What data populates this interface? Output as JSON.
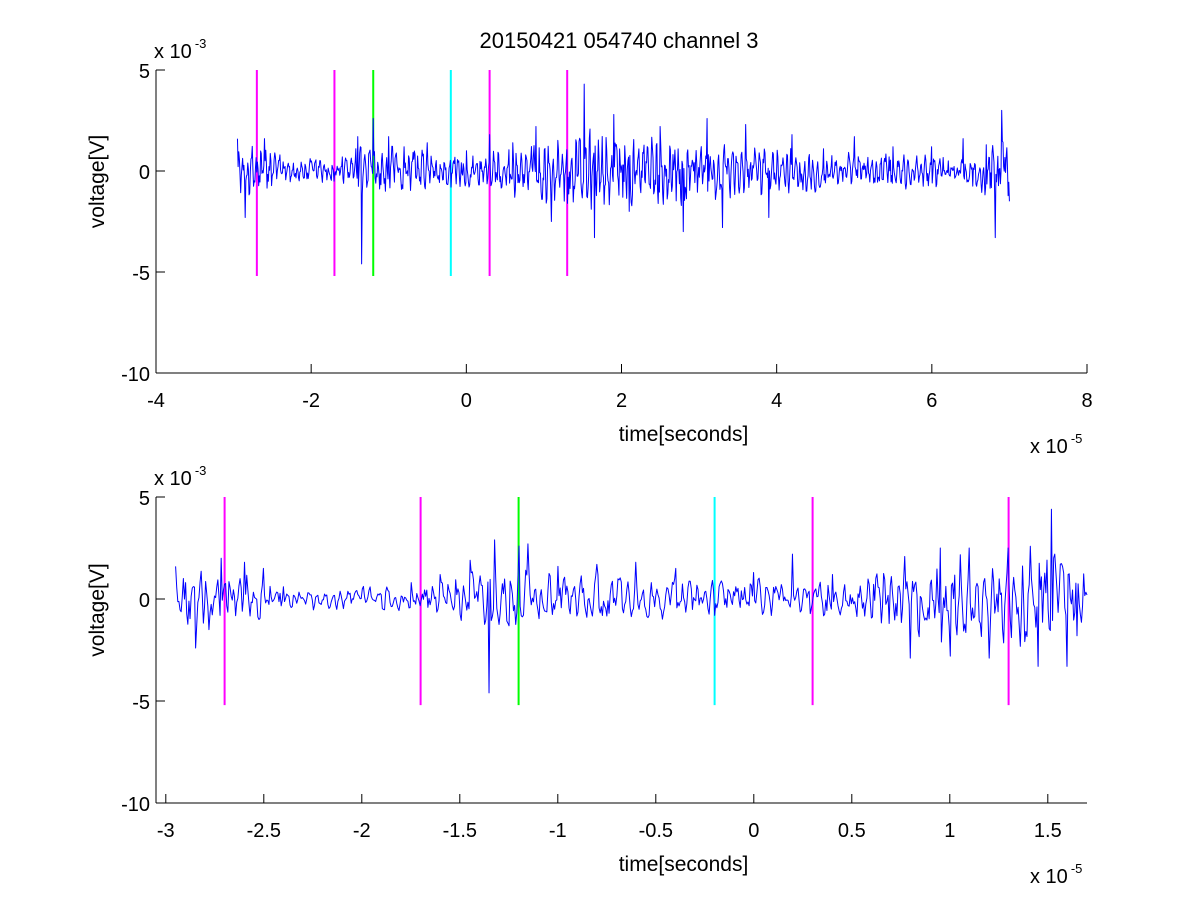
{
  "figure_title": "20150421 054740 channel 3",
  "chart_data": [
    {
      "type": "line",
      "xlabel": "time[seconds]",
      "ylabel": "voltage[V]",
      "x_exponent_label": "x 10",
      "x_exponent": "-5",
      "y_exponent_label": "x 10",
      "y_exponent": "-3",
      "xlim": [
        -4,
        8
      ],
      "ylim": [
        -10,
        5
      ],
      "xticks": [
        -4,
        -2,
        0,
        2,
        4,
        6,
        8
      ],
      "xtick_labels": [
        "-4",
        "-2",
        "0",
        "2",
        "4",
        "6",
        "8"
      ],
      "yticks": [
        -10,
        -5,
        0,
        5
      ],
      "ytick_labels": [
        "-10",
        "-5",
        "0",
        "5"
      ],
      "grid": false,
      "series": [
        {
          "color": "#0000ff",
          "x_start": -2.95,
          "x_end": 7.0,
          "envelope": [
            [
              -2.95,
              1.6
            ],
            [
              -2.85,
              -2.3
            ],
            [
              -2.6,
              1.6
            ],
            [
              -2.4,
              0.8
            ],
            [
              -2.0,
              0.5
            ],
            [
              -1.6,
              0.7
            ],
            [
              -1.4,
              1.7
            ],
            [
              -1.35,
              -4.6
            ],
            [
              -1.2,
              2.6
            ],
            [
              -1.0,
              1.7
            ],
            [
              -0.8,
              1.2
            ],
            [
              -0.5,
              1.4
            ],
            [
              -0.2,
              -0.8
            ],
            [
              0.0,
              1.0
            ],
            [
              0.3,
              1.8
            ],
            [
              0.6,
              1.4
            ],
            [
              0.9,
              2.2
            ],
            [
              1.1,
              -2.5
            ],
            [
              1.3,
              -1.6
            ],
            [
              1.52,
              4.3
            ],
            [
              1.65,
              -3.3
            ],
            [
              1.9,
              2.8
            ],
            [
              2.1,
              -2.0
            ],
            [
              2.5,
              2.2
            ],
            [
              2.8,
              -3.0
            ],
            [
              3.1,
              2.6
            ],
            [
              3.3,
              -2.8
            ],
            [
              3.6,
              2.3
            ],
            [
              3.9,
              -2.3
            ],
            [
              4.2,
              1.8
            ],
            [
              4.6,
              1.1
            ],
            [
              5.0,
              1.7
            ],
            [
              5.5,
              1.2
            ],
            [
              6.0,
              1.2
            ],
            [
              6.4,
              1.6
            ],
            [
              6.7,
              1.3
            ],
            [
              6.82,
              -3.3
            ],
            [
              6.9,
              3.0
            ],
            [
              7.0,
              -1.5
            ]
          ],
          "amplitude_profile": [
            [
              -2.95,
              1.2
            ],
            [
              -2.6,
              1.4
            ],
            [
              -2.4,
              0.6
            ],
            [
              -1.6,
              0.7
            ],
            [
              -1.2,
              1.4
            ],
            [
              -0.6,
              1.0
            ],
            [
              0.0,
              0.9
            ],
            [
              0.5,
              1.2
            ],
            [
              1.0,
              1.5
            ],
            [
              1.5,
              2.2
            ],
            [
              2.0,
              1.8
            ],
            [
              3.0,
              1.8
            ],
            [
              3.8,
              1.3
            ],
            [
              4.5,
              0.9
            ],
            [
              6.5,
              0.8
            ],
            [
              6.8,
              1.8
            ],
            [
              7.0,
              1.2
            ]
          ]
        }
      ],
      "markers": [
        {
          "x": -2.7,
          "color": "#ff00ff",
          "y_range": [
            -5.2,
            5
          ]
        },
        {
          "x": -1.7,
          "color": "#ff00ff",
          "y_range": [
            -5.2,
            5
          ]
        },
        {
          "x": -1.2,
          "color": "#00ff00",
          "y_range": [
            -5.2,
            5
          ]
        },
        {
          "x": -0.2,
          "color": "#00ffff",
          "y_range": [
            -5.2,
            5
          ]
        },
        {
          "x": 0.3,
          "color": "#ff00ff",
          "y_range": [
            -5.2,
            5
          ]
        },
        {
          "x": 1.3,
          "color": "#ff00ff",
          "y_range": [
            -5.2,
            5
          ]
        }
      ]
    },
    {
      "type": "line",
      "xlabel": "time[seconds]",
      "ylabel": "voltage[V]",
      "x_exponent_label": "x 10",
      "x_exponent": "-5",
      "y_exponent_label": "x 10",
      "y_exponent": "-3",
      "xlim": [
        -3.05,
        1.7
      ],
      "ylim": [
        -10,
        5
      ],
      "xticks": [
        -3,
        -2.5,
        -2,
        -1.5,
        -1,
        -0.5,
        0,
        0.5,
        1,
        1.5
      ],
      "xtick_labels": [
        "-3",
        "-2.5",
        "-2",
        "-1.5",
        "-1",
        "-0.5",
        "0",
        "0.5",
        "1",
        "1.5"
      ],
      "yticks": [
        -10,
        -5,
        0,
        5
      ],
      "ytick_labels": [
        "-10",
        "-5",
        "0",
        "5"
      ],
      "grid": false,
      "series": [
        {
          "color": "#0000ff",
          "x_start": -2.95,
          "x_end": 1.7,
          "envelope": [
            [
              -2.95,
              1.6
            ],
            [
              -2.9,
              0.8
            ],
            [
              -2.85,
              -2.4
            ],
            [
              -2.78,
              -1.5
            ],
            [
              -2.72,
              2.0
            ],
            [
              -2.6,
              1.8
            ],
            [
              -2.5,
              1.5
            ],
            [
              -2.4,
              0.6
            ],
            [
              -2.0,
              0.5
            ],
            [
              -1.75,
              0.8
            ],
            [
              -1.6,
              1.2
            ],
            [
              -1.45,
              1.9
            ],
            [
              -1.35,
              -4.6
            ],
            [
              -1.32,
              2.9
            ],
            [
              -1.2,
              2.6
            ],
            [
              -1.15,
              2.7
            ],
            [
              -1.0,
              1.6
            ],
            [
              -0.8,
              1.7
            ],
            [
              -0.6,
              1.8
            ],
            [
              -0.4,
              1.5
            ],
            [
              -0.2,
              -0.8
            ],
            [
              0.0,
              1.3
            ],
            [
              0.2,
              2.2
            ],
            [
              0.4,
              1.2
            ],
            [
              0.7,
              1.1
            ],
            [
              0.8,
              -2.9
            ],
            [
              0.95,
              2.5
            ],
            [
              1.0,
              -2.8
            ],
            [
              1.1,
              2.5
            ],
            [
              1.2,
              -2.9
            ],
            [
              1.3,
              2.5
            ],
            [
              1.45,
              -3.3
            ],
            [
              1.52,
              4.4
            ],
            [
              1.6,
              -3.3
            ],
            [
              1.65,
              -1.8
            ],
            [
              1.7,
              0.2
            ]
          ],
          "amplitude_profile": [
            [
              -2.95,
              1.2
            ],
            [
              -2.85,
              1.8
            ],
            [
              -2.6,
              1.3
            ],
            [
              -2.4,
              0.5
            ],
            [
              -1.7,
              0.6
            ],
            [
              -1.4,
              1.5
            ],
            [
              -1.1,
              1.4
            ],
            [
              -0.6,
              1.0
            ],
            [
              0.0,
              0.9
            ],
            [
              0.5,
              1.0
            ],
            [
              0.8,
              2.0
            ],
            [
              1.3,
              2.2
            ],
            [
              1.5,
              2.8
            ],
            [
              1.7,
              1.8
            ]
          ]
        }
      ],
      "markers": [
        {
          "x": -2.7,
          "color": "#ff00ff",
          "y_range": [
            -5.2,
            5
          ]
        },
        {
          "x": -1.7,
          "color": "#ff00ff",
          "y_range": [
            -5.2,
            5
          ]
        },
        {
          "x": -1.2,
          "color": "#00ff00",
          "y_range": [
            -5.2,
            5
          ]
        },
        {
          "x": -0.2,
          "color": "#00ffff",
          "y_range": [
            -5.2,
            5
          ]
        },
        {
          "x": 0.3,
          "color": "#ff00ff",
          "y_range": [
            -5.2,
            5
          ]
        },
        {
          "x": 1.3,
          "color": "#ff00ff",
          "y_range": [
            -5.2,
            5
          ]
        }
      ]
    }
  ]
}
